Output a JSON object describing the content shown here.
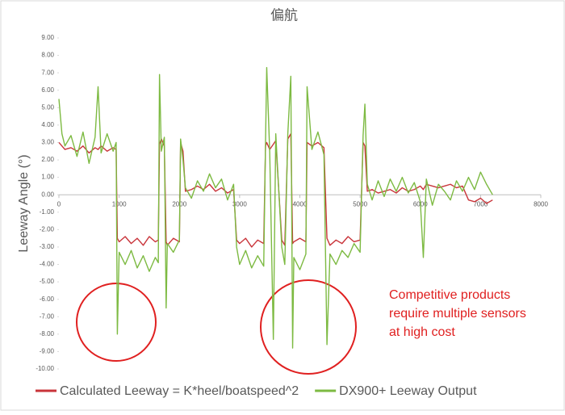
{
  "chart_data": {
    "type": "line",
    "title": "偏航",
    "y_label": "Leeway Angle (°)",
    "annotation": [
      "Competitive products",
      "require multiple sensors",
      "at high cost"
    ],
    "x": [
      0,
      50,
      100,
      200,
      300,
      400,
      500,
      600,
      650,
      700,
      800,
      900,
      950,
      970,
      1000,
      1100,
      1200,
      1300,
      1400,
      1500,
      1600,
      1650,
      1670,
      1700,
      1750,
      1780,
      1800,
      1900,
      2000,
      2020,
      2060,
      2100,
      2200,
      2300,
      2400,
      2500,
      2600,
      2700,
      2800,
      2900,
      2950,
      3000,
      3100,
      3200,
      3300,
      3400,
      3430,
      3450,
      3500,
      3560,
      3600,
      3700,
      3750,
      3800,
      3850,
      3880,
      3900,
      4000,
      4100,
      4120,
      4200,
      4300,
      4400,
      4450,
      4500,
      4600,
      4700,
      4800,
      4900,
      5000,
      5050,
      5080,
      5120,
      5200,
      5300,
      5400,
      5500,
      5600,
      5700,
      5800,
      5900,
      6000,
      6050,
      6100,
      6200,
      6300,
      6400,
      6500,
      6600,
      6700,
      6800,
      6900,
      7000,
      7100,
      7200
    ],
    "series": [
      {
        "name": "Calculated Leeway = K*heel/boatspeed^2",
        "color": "#c9343a",
        "values": [
          3.0,
          2.8,
          2.6,
          2.7,
          2.5,
          2.8,
          2.4,
          2.7,
          2.6,
          2.8,
          2.5,
          2.7,
          2.6,
          -2.5,
          -2.7,
          -2.4,
          -2.8,
          -2.5,
          -2.9,
          -2.4,
          -2.7,
          -2.6,
          2.9,
          3.2,
          2.8,
          -2.7,
          -2.9,
          -2.5,
          -2.7,
          3.0,
          2.5,
          0.2,
          0.3,
          0.5,
          0.3,
          0.6,
          0.2,
          0.4,
          0.1,
          0.3,
          -2.6,
          -2.8,
          -2.5,
          -3.0,
          -2.6,
          -2.8,
          2.8,
          3.0,
          2.6,
          2.9,
          3.1,
          -2.6,
          -2.9,
          3.2,
          3.5,
          -2.8,
          -2.7,
          -2.5,
          -2.7,
          3.0,
          2.8,
          3.0,
          2.7,
          -2.5,
          -2.9,
          -2.6,
          -2.8,
          -2.4,
          -2.7,
          -2.6,
          3.0,
          2.8,
          0.2,
          0.3,
          0.1,
          0.2,
          0.3,
          0.1,
          0.4,
          0.2,
          0.3,
          0.5,
          0.3,
          0.6,
          0.5,
          0.4,
          0.5,
          0.6,
          0.4,
          0.5,
          -0.3,
          -0.4,
          -0.2,
          -0.5,
          -0.3
        ]
      },
      {
        "name": "DX900+ Leeway Output",
        "color": "#7dba42",
        "values": [
          5.5,
          3.5,
          2.8,
          3.4,
          2.2,
          3.6,
          1.8,
          3.3,
          6.2,
          2.4,
          3.5,
          2.5,
          3.0,
          -8.0,
          -3.3,
          -4.0,
          -3.2,
          -4.2,
          -3.5,
          -4.4,
          -3.6,
          -3.9,
          6.9,
          2.5,
          3.3,
          -6.5,
          -2.8,
          -3.3,
          -2.6,
          3.2,
          2.0,
          0.4,
          -0.2,
          0.8,
          0.2,
          1.2,
          0.4,
          0.9,
          -0.3,
          0.6,
          -3.0,
          -4.0,
          -3.2,
          -4.2,
          -3.5,
          -4.1,
          3.0,
          7.3,
          2.4,
          -8.3,
          3.5,
          -3.0,
          -4.0,
          3.5,
          6.8,
          -8.8,
          -3.6,
          -4.3,
          -3.4,
          6.2,
          2.6,
          3.6,
          2.3,
          -8.6,
          -3.4,
          -4.0,
          -3.2,
          -3.6,
          -2.8,
          -3.3,
          3.4,
          5.2,
          0.6,
          -0.3,
          0.8,
          -0.1,
          0.9,
          0.2,
          1.0,
          0.1,
          0.7,
          -0.4,
          -3.6,
          0.9,
          -0.6,
          0.6,
          0.2,
          -0.3,
          0.8,
          0.2,
          1.0,
          0.3,
          1.3,
          0.6,
          0.0
        ]
      }
    ],
    "xlim": [
      0,
      8000
    ],
    "xticks": [
      0,
      1000,
      2000,
      3000,
      4000,
      5000,
      6000,
      7000,
      8000
    ],
    "ylim": [
      -10,
      9
    ],
    "yticks": [
      {
        "value": 9,
        "label": "9.00"
      },
      {
        "value": 8,
        "label": "8.00"
      },
      {
        "value": 7,
        "label": "7.00"
      },
      {
        "value": 6,
        "label": "6.00"
      },
      {
        "value": 5,
        "label": "5.00"
      },
      {
        "value": 4,
        "label": "4.00"
      },
      {
        "value": 3,
        "label": "3.00"
      },
      {
        "value": 2,
        "label": "2.00"
      },
      {
        "value": 1,
        "label": "1.00"
      },
      {
        "value": 0,
        "label": "0.00"
      },
      {
        "value": -1,
        "label": "-1.00"
      },
      {
        "value": -2,
        "label": "-2.00"
      },
      {
        "value": -3,
        "label": "-3.00"
      },
      {
        "value": -4,
        "label": "-4.00"
      },
      {
        "value": -5,
        "label": "-5.00"
      },
      {
        "value": -6,
        "label": "-6.00"
      },
      {
        "value": -7,
        "label": "-7.00"
      },
      {
        "value": -8,
        "label": "-8.00"
      },
      {
        "value": -9,
        "label": "-9.00"
      },
      {
        "value": -10,
        "label": "-10.00"
      }
    ],
    "grid": false
  }
}
